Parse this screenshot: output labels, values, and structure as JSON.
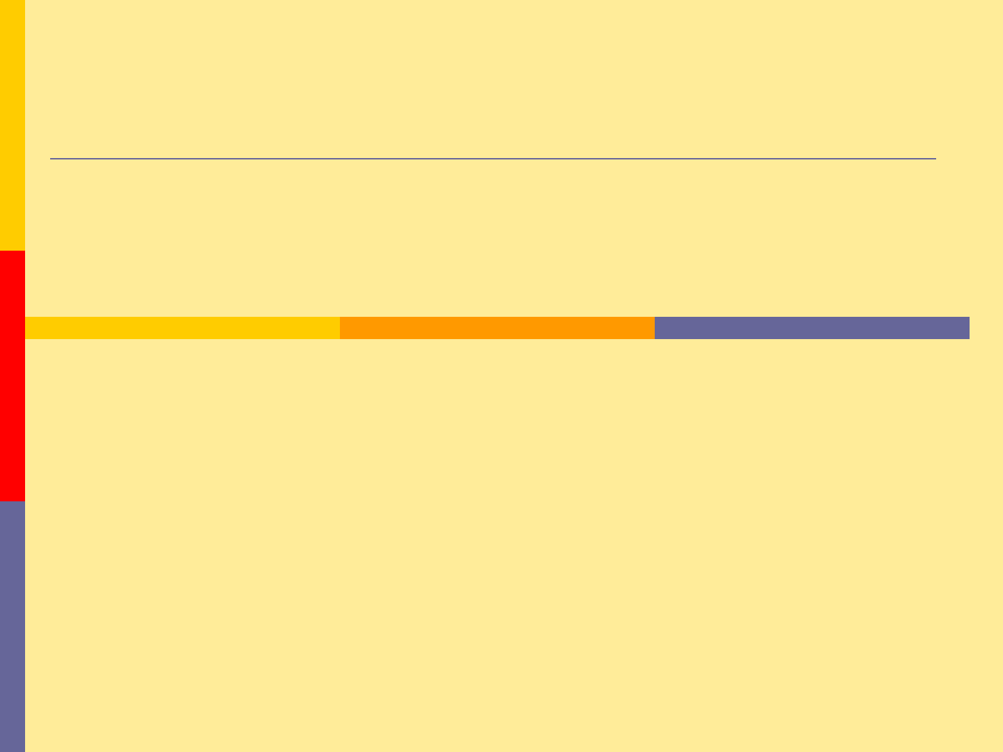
{
  "slide": {
    "colors": {
      "background": "#FFEC99",
      "yellow": "#FFCC00",
      "red": "#FF0000",
      "orange": "#FF9900",
      "purple": "#666699",
      "rule": "#666699"
    }
  }
}
